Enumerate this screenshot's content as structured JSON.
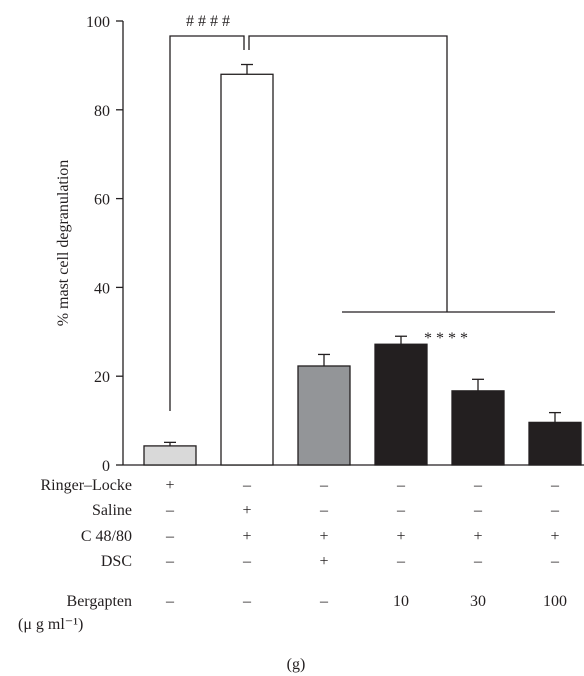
{
  "chart_data": {
    "type": "bar",
    "ylabel": "% mast cell degranulation",
    "ylim": [
      0,
      100
    ],
    "yticks": [
      0,
      20,
      40,
      60,
      80,
      100
    ],
    "grid": false,
    "categories": [
      "1",
      "2",
      "3",
      "4",
      "5",
      "6"
    ],
    "values": [
      4.3,
      88.0,
      22.3,
      27.2,
      16.7,
      9.6
    ],
    "errors": [
      0.8,
      2.2,
      2.6,
      1.8,
      2.6,
      2.2
    ],
    "bar_colors": [
      "#d9d9d9",
      "#ffffff",
      "#939598",
      "#231f20",
      "#231f20",
      "#231f20"
    ],
    "annotations": [
      {
        "text": "# # # #",
        "comparison": "Ringer–Locke vs Saline"
      },
      {
        "text": "* * * *",
        "comparison": "Saline vs DSC and Bergapten groups"
      }
    ],
    "treatment_table": {
      "rows": [
        {
          "label": "Ringer–Locke",
          "values": [
            "+",
            "–",
            "–",
            "–",
            "–",
            "–"
          ]
        },
        {
          "label": "Saline",
          "values": [
            "–",
            "+",
            "–",
            "–",
            "–",
            "–"
          ]
        },
        {
          "label": "C 48/80",
          "values": [
            "–",
            "+",
            "+",
            "+",
            "+",
            "+"
          ]
        },
        {
          "label": "DSC",
          "values": [
            "–",
            "–",
            "+",
            "–",
            "–",
            "–"
          ]
        },
        {
          "label": "Bergapten",
          "values": [
            "–",
            "–",
            "–",
            "10",
            "30",
            "100"
          ]
        }
      ],
      "unit_label": "(μ g ml⁻¹)"
    },
    "panel_label": "(g)"
  }
}
